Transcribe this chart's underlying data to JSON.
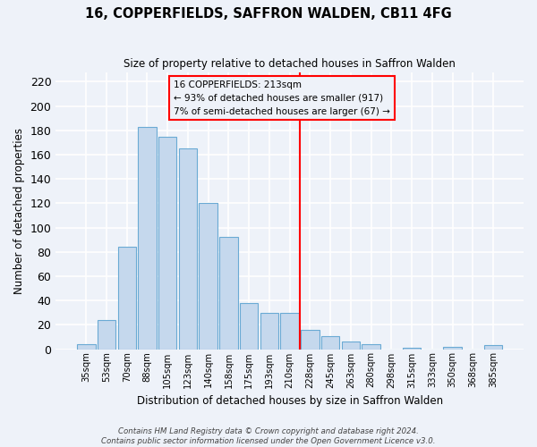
{
  "title": "16, COPPERFIELDS, SAFFRON WALDEN, CB11 4FG",
  "subtitle": "Size of property relative to detached houses in Saffron Walden",
  "xlabel": "Distribution of detached houses by size in Saffron Walden",
  "ylabel": "Number of detached properties",
  "bar_labels": [
    "35sqm",
    "53sqm",
    "70sqm",
    "88sqm",
    "105sqm",
    "123sqm",
    "140sqm",
    "158sqm",
    "175sqm",
    "193sqm",
    "210sqm",
    "228sqm",
    "245sqm",
    "263sqm",
    "280sqm",
    "298sqm",
    "315sqm",
    "333sqm",
    "350sqm",
    "368sqm",
    "385sqm"
  ],
  "bar_values": [
    4,
    24,
    84,
    183,
    175,
    165,
    120,
    92,
    38,
    30,
    30,
    16,
    11,
    6,
    4,
    0,
    1,
    0,
    2,
    0,
    3
  ],
  "bar_color": "#c5d8ed",
  "bar_edge_color": "#6aaad4",
  "ylim": [
    0,
    228
  ],
  "yticks": [
    0,
    20,
    40,
    60,
    80,
    100,
    120,
    140,
    160,
    180,
    200,
    220
  ],
  "vline_x_idx": 10.5,
  "vline_color": "red",
  "annotation_title": "16 COPPERFIELDS: 213sqm",
  "annotation_line1": "← 93% of detached houses are smaller (917)",
  "annotation_line2": "7% of semi-detached houses are larger (67) →",
  "annotation_box_color": "red",
  "footer_line1": "Contains HM Land Registry data © Crown copyright and database right 2024.",
  "footer_line2": "Contains public sector information licensed under the Open Government Licence v3.0.",
  "background_color": "#eef2f9",
  "grid_color": "white"
}
